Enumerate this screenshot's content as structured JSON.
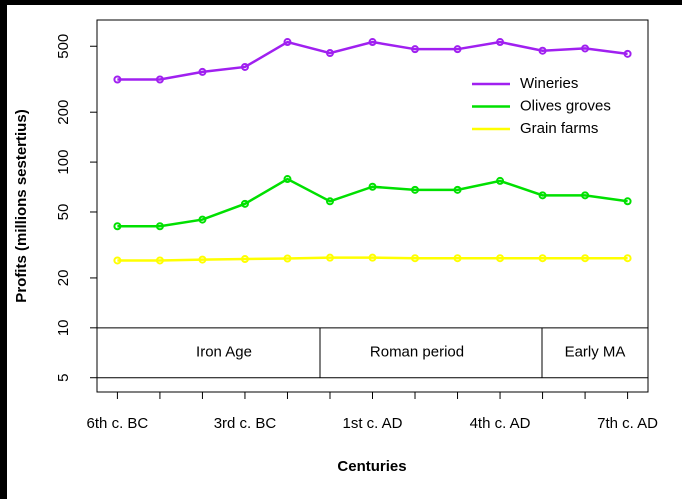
{
  "chart_data": {
    "type": "line",
    "xlabel": "Centuries",
    "ylabel": "Profits (millions sestertius)",
    "categories": [
      "6th c. BC",
      null,
      null,
      "3rd c. BC",
      null,
      null,
      "1st c. AD",
      null,
      null,
      "4th c. AD",
      null,
      null,
      "7th c. AD"
    ],
    "series": [
      {
        "name": "Wineries",
        "color": "#a020f0",
        "values": [
          315,
          315,
          350,
          375,
          530,
          455,
          530,
          480,
          480,
          530,
          470,
          485,
          450
        ]
      },
      {
        "name": "Olives groves",
        "color": "#00e000",
        "values": [
          41,
          41,
          45,
          56,
          79,
          58,
          71,
          68,
          68,
          77,
          63,
          63,
          58
        ]
      },
      {
        "name": "Grain farms",
        "color": "#ffff00",
        "values": [
          25.5,
          25.5,
          25.8,
          26,
          26.2,
          26.5,
          26.5,
          26.3,
          26.3,
          26.3,
          26.3,
          26.3,
          26.3
        ]
      }
    ],
    "periods": [
      "Iron Age",
      "Roman period",
      "Early MA"
    ],
    "ylim": [
      4.1,
      720
    ],
    "yticks": [
      5,
      10,
      20,
      50,
      100,
      200,
      500
    ],
    "log_y": true,
    "legend": "topright"
  }
}
